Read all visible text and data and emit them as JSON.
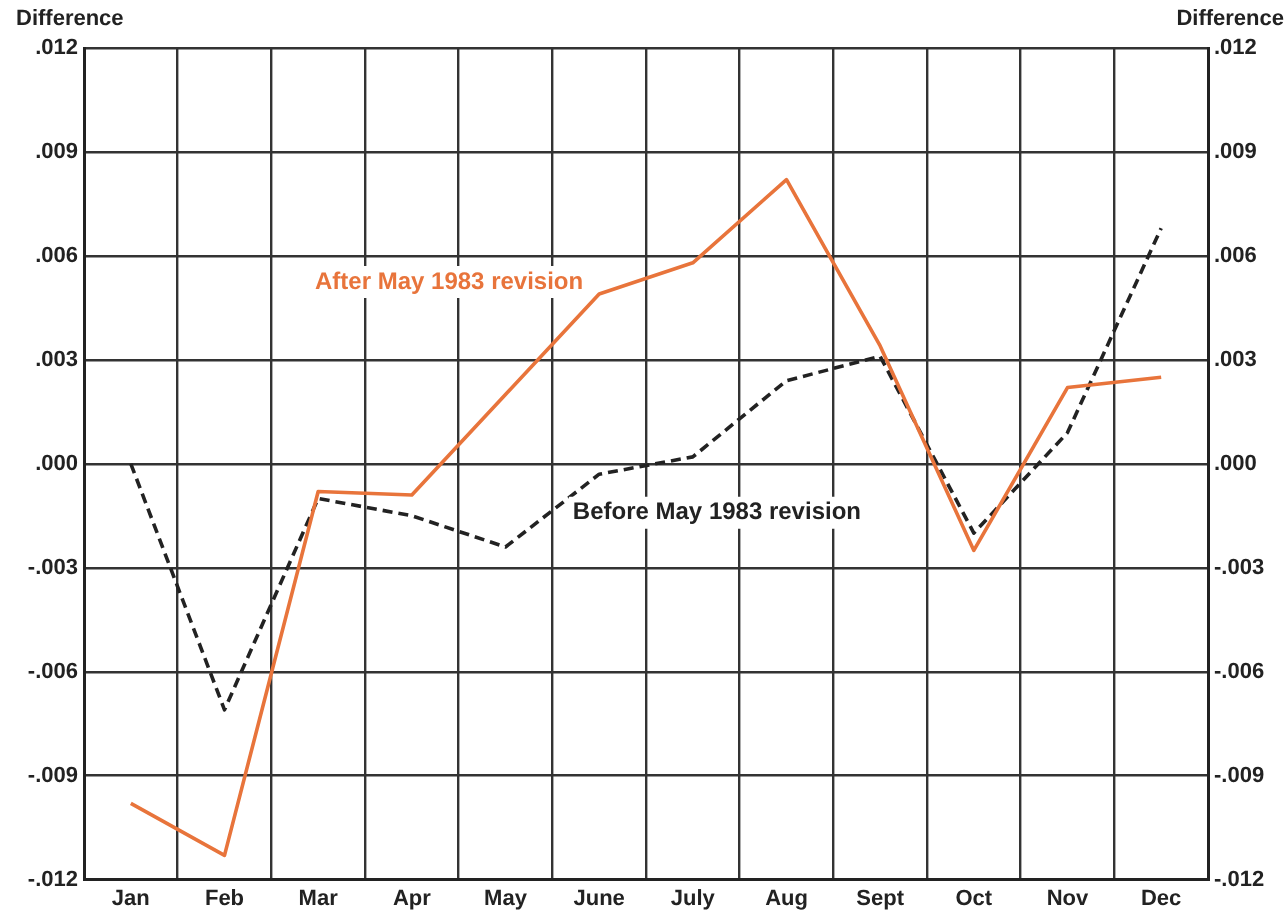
{
  "chart_data": {
    "type": "line",
    "ylabel": "Difference",
    "y2label": "Difference",
    "categories": [
      "Jan",
      "Feb",
      "Mar",
      "Apr",
      "May",
      "June",
      "July",
      "Aug",
      "Sept",
      "Oct",
      "Nov",
      "Dec"
    ],
    "series": [
      {
        "name": "After May 1983 revision",
        "color": "#e8743b",
        "line_style": "solid",
        "values": [
          -0.0098,
          -0.0113,
          -0.0008,
          -0.0009,
          0.002,
          0.0049,
          0.0058,
          0.0082,
          0.0034,
          -0.0025,
          0.0022,
          0.0025
        ]
      },
      {
        "name": "Before May 1983 revision",
        "color": "#222222",
        "line_style": "dashed",
        "values": [
          0,
          -0.0071,
          -0.001,
          -0.0015,
          -0.0024,
          -0.0003,
          0.0002,
          0.0024,
          0.0031,
          -0.002,
          0.0009,
          0.0068
        ]
      }
    ],
    "ylim": [
      -0.012,
      0.012
    ],
    "yticks": [
      {
        "value": 0.012,
        "label": ".012"
      },
      {
        "value": 0.009,
        "label": ".009"
      },
      {
        "value": 0.006,
        "label": ".006"
      },
      {
        "value": 0.003,
        "label": ".003"
      },
      {
        "value": 0,
        "label": ".000"
      },
      {
        "value": -0.003,
        "label": "-.003"
      },
      {
        "value": -0.006,
        "label": "-.006"
      },
      {
        "value": -0.009,
        "label": "-.009"
      },
      {
        "value": -0.012,
        "label": "-.012"
      }
    ],
    "y2lim": [
      -0.012,
      0.012
    ],
    "y2ticks": [
      {
        "value": 0.012,
        "label": ".012"
      },
      {
        "value": 0.009,
        "label": ".009"
      },
      {
        "value": 0.006,
        "label": ".006"
      },
      {
        "value": 0.003,
        "label": ".003"
      },
      {
        "value": 0,
        "label": ".000"
      },
      {
        "value": -0.003,
        "label": "-.003"
      },
      {
        "value": -0.006,
        "label": "-.006"
      },
      {
        "value": -0.009,
        "label": "-.009"
      },
      {
        "value": -0.012,
        "label": "-.012"
      }
    ],
    "grid": true,
    "legend": false,
    "marker": "none"
  }
}
